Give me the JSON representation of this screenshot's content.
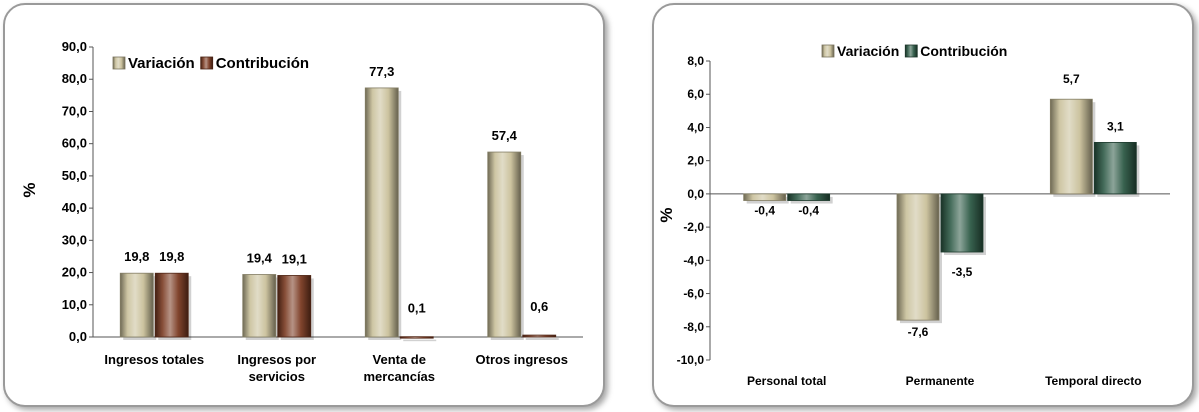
{
  "chart_data": [
    {
      "type": "bar",
      "title": "",
      "xlabel": "",
      "ylabel": "%",
      "ylim": [
        0,
        90
      ],
      "yticks": [
        "0,0",
        "10,0",
        "20,0",
        "30,0",
        "40,0",
        "50,0",
        "60,0",
        "70,0",
        "80,0",
        "90,0"
      ],
      "categories": [
        [
          "Ingresos totales"
        ],
        [
          "Ingresos por",
          "servicios"
        ],
        [
          "Venta de",
          "mercancías"
        ],
        [
          "Otros ingresos"
        ]
      ],
      "series": [
        {
          "name": "Variación",
          "values": [
            19.8,
            19.4,
            77.3,
            57.4
          ],
          "labels": [
            "19,8",
            "19,4",
            "77,3",
            "57,4"
          ],
          "color": "#c9c09a"
        },
        {
          "name": "Contribución",
          "values": [
            19.8,
            19.1,
            0.1,
            0.6
          ],
          "labels": [
            "19,8",
            "19,1",
            "0,1",
            "0,6"
          ],
          "color": "#7a3a22"
        }
      ],
      "legend": "top"
    },
    {
      "type": "bar",
      "title": "",
      "xlabel": "",
      "ylabel": "%",
      "ylim": [
        -10,
        8
      ],
      "yticks": [
        "-10,0",
        "-8,0",
        "-6,0",
        "-4,0",
        "-2,0",
        "0,0",
        "2,0",
        "4,0",
        "6,0",
        "8,0"
      ],
      "categories": [
        [
          "Personal total"
        ],
        [
          "Permanente"
        ],
        [
          "Temporal directo"
        ]
      ],
      "series": [
        {
          "name": "Variación",
          "values": [
            -0.4,
            -7.6,
            5.7
          ],
          "labels": [
            "-0,4",
            "-7,6",
            "5,7"
          ],
          "color": "#c9c09a"
        },
        {
          "name": "Contribución",
          "values": [
            -0.4,
            -3.5,
            3.1
          ],
          "labels": [
            "-0,4",
            "-3,5",
            "3,1"
          ],
          "color": "#2e5a46"
        }
      ],
      "legend": "top"
    }
  ]
}
